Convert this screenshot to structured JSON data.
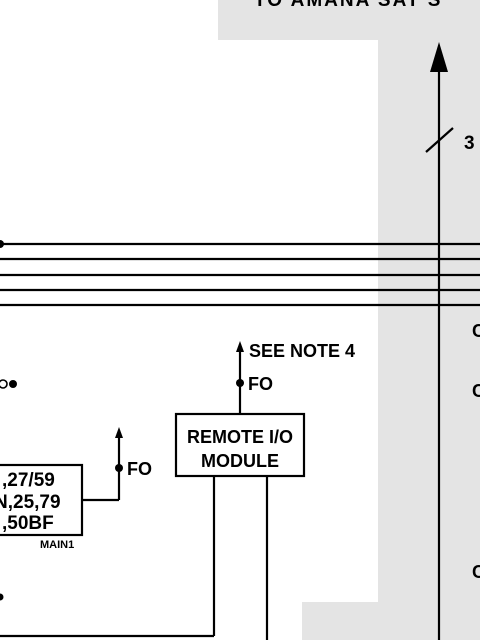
{
  "diagram": {
    "top_banner": "TO AMANA SAT S",
    "bus_label": "3",
    "see_note": "SEE NOTE 4",
    "fo_upper": "FO",
    "fo_left": "FO",
    "remote_io": {
      "line1": "REMOTE I/O",
      "line2": "MODULE"
    },
    "relay_box": {
      "line1": ",27/59",
      "line2": "N,25,79",
      "line3": ",50BF",
      "tag": "MAIN1"
    },
    "right_edge_labels": [
      "C",
      "C",
      "C"
    ],
    "colors": {
      "shade": "#e4e4e4",
      "ink": "#000000",
      "paper": "#ffffff"
    }
  }
}
